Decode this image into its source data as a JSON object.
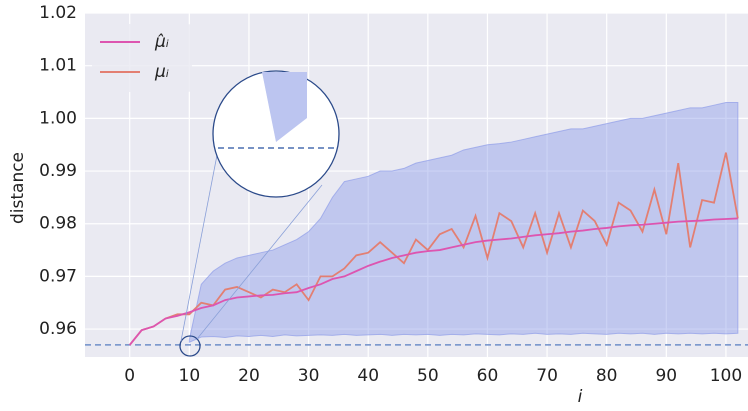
{
  "chart_data": {
    "type": "line",
    "xlabel": "i",
    "ylabel": "distance",
    "xlim": [
      -7.5,
      103.7
    ],
    "ylim": [
      0.9547,
      1.02
    ],
    "xticks": [
      0,
      10,
      20,
      30,
      40,
      50,
      60,
      70,
      80,
      90,
      100
    ],
    "yticks": [
      {
        "value": 0.96,
        "label": "0.96"
      },
      {
        "value": 0.97,
        "label": "0.97"
      },
      {
        "value": 0.98,
        "label": "0.98"
      },
      {
        "value": 0.99,
        "label": "0.99"
      },
      {
        "value": 1.0,
        "label": "1.00"
      },
      {
        "value": 1.01,
        "label": "1.01"
      },
      {
        "value": 1.02,
        "label": "1.02"
      }
    ],
    "grid": true,
    "legend": "upper left",
    "hline": 0.957,
    "hline_color": "#6f8fc9",
    "x": [
      0,
      2,
      4,
      6,
      8,
      10,
      12,
      14,
      16,
      18,
      20,
      22,
      24,
      26,
      28,
      30,
      32,
      34,
      36,
      38,
      40,
      42,
      44,
      46,
      48,
      50,
      52,
      54,
      56,
      58,
      60,
      62,
      64,
      66,
      68,
      70,
      72,
      74,
      76,
      78,
      80,
      82,
      84,
      86,
      88,
      90,
      92,
      94,
      96,
      98,
      100,
      102
    ],
    "series": [
      {
        "name": "μ̂ᵢ",
        "color": "#dd55b0",
        "values": [
          0.957,
          0.9598,
          0.9605,
          0.962,
          0.9625,
          0.9632,
          0.964,
          0.9645,
          0.9655,
          0.966,
          0.9662,
          0.9664,
          0.9665,
          0.9668,
          0.967,
          0.9678,
          0.9685,
          0.9695,
          0.97,
          0.971,
          0.972,
          0.9728,
          0.9735,
          0.974,
          0.9745,
          0.9748,
          0.975,
          0.9755,
          0.976,
          0.9765,
          0.9768,
          0.977,
          0.9772,
          0.9775,
          0.9778,
          0.978,
          0.9782,
          0.9785,
          0.9787,
          0.979,
          0.9792,
          0.9795,
          0.9797,
          0.9798,
          0.98,
          0.9802,
          0.9804,
          0.9805,
          0.9806,
          0.9808,
          0.9809,
          0.981
        ]
      },
      {
        "name": "μᵢ",
        "color": "#e37f72",
        "values": [
          0.957,
          0.9598,
          0.9605,
          0.962,
          0.9628,
          0.9628,
          0.965,
          0.9645,
          0.9675,
          0.968,
          0.967,
          0.966,
          0.9675,
          0.967,
          0.9685,
          0.9655,
          0.97,
          0.97,
          0.9715,
          0.974,
          0.9745,
          0.9765,
          0.9745,
          0.9725,
          0.977,
          0.975,
          0.978,
          0.979,
          0.9755,
          0.9815,
          0.9735,
          0.982,
          0.9805,
          0.9755,
          0.982,
          0.9745,
          0.982,
          0.9755,
          0.9825,
          0.9805,
          0.976,
          0.984,
          0.9825,
          0.9785,
          0.9865,
          0.978,
          0.9915,
          0.9755,
          0.9845,
          0.984,
          0.9935,
          0.981
        ]
      }
    ],
    "band": {
      "color": "#8e9de8",
      "x": [
        10,
        12,
        14,
        16,
        18,
        20,
        22,
        24,
        26,
        28,
        30,
        32,
        34,
        36,
        38,
        40,
        42,
        44,
        46,
        48,
        50,
        52,
        54,
        56,
        58,
        60,
        62,
        64,
        66,
        68,
        70,
        72,
        74,
        76,
        78,
        80,
        82,
        84,
        86,
        88,
        90,
        92,
        94,
        96,
        98,
        100,
        102
      ],
      "upper": [
        0.958,
        0.9685,
        0.971,
        0.9725,
        0.9735,
        0.974,
        0.9745,
        0.975,
        0.976,
        0.977,
        0.9785,
        0.981,
        0.985,
        0.988,
        0.9885,
        0.989,
        0.99,
        0.99,
        0.9905,
        0.9915,
        0.992,
        0.9925,
        0.993,
        0.994,
        0.9945,
        0.995,
        0.9952,
        0.9955,
        0.996,
        0.9965,
        0.997,
        0.9975,
        0.998,
        0.998,
        0.9985,
        0.999,
        0.9995,
        1.0,
        1.0,
        1.0005,
        1.001,
        1.0015,
        1.002,
        1.002,
        1.0025,
        1.003,
        1.003
      ],
      "lower": [
        0.9575,
        0.9585,
        0.9586,
        0.9584,
        0.9587,
        0.9586,
        0.9588,
        0.9586,
        0.9589,
        0.9587,
        0.9588,
        0.9589,
        0.9588,
        0.959,
        0.9588,
        0.9589,
        0.959,
        0.9588,
        0.959,
        0.9589,
        0.959,
        0.9588,
        0.959,
        0.9589,
        0.9591,
        0.959,
        0.9589,
        0.9591,
        0.959,
        0.9592,
        0.959,
        0.9591,
        0.959,
        0.9592,
        0.9591,
        0.959,
        0.9592,
        0.9591,
        0.9592,
        0.959,
        0.9592,
        0.9591,
        0.9592,
        0.9591,
        0.9592,
        0.9591,
        0.9592
      ]
    }
  }
}
